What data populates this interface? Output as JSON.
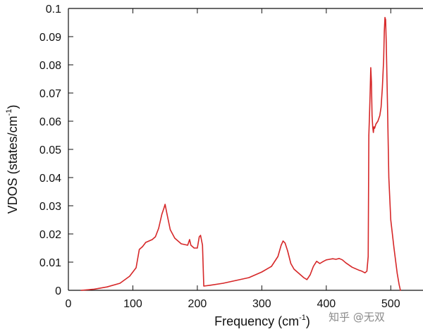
{
  "watermark": "知乎 @无双",
  "chart_data": {
    "type": "line",
    "title": "",
    "xlabel": "Frequency (cm",
    "xlabel_sup": "-1",
    "xlabel_end": ")",
    "ylabel": "VDOS (states/cm",
    "ylabel_sup": "-1",
    "ylabel_end": ")",
    "xlim": [
      0,
      550
    ],
    "ylim": [
      0,
      0.1
    ],
    "xticks": [
      0,
      100,
      200,
      300,
      400,
      500
    ],
    "xtick_labels": [
      "0",
      "100",
      "200",
      "300",
      "400",
      "500"
    ],
    "yticks": [
      0,
      0.01,
      0.02,
      0.03,
      0.04,
      0.05,
      0.06,
      0.07,
      0.08,
      0.09,
      0.1
    ],
    "ytick_labels": [
      "0",
      "0.01",
      "0.02",
      "0.03",
      "0.04",
      "0.05",
      "0.06",
      "0.07",
      "0.08",
      "0.09",
      "0.1"
    ],
    "grid": false,
    "series": [
      {
        "color": "#d62728",
        "x": [
          20,
          40,
          60,
          80,
          95,
          105,
          110,
          115,
          120,
          125,
          130,
          135,
          140,
          145,
          148,
          150,
          153,
          158,
          165,
          175,
          185,
          188,
          190,
          195,
          200,
          203,
          205,
          208,
          210,
          220,
          240,
          260,
          280,
          300,
          315,
          325,
          330,
          333,
          336,
          340,
          345,
          350,
          360,
          365,
          370,
          375,
          380,
          385,
          390,
          395,
          400,
          405,
          410,
          415,
          420,
          425,
          430,
          440,
          450,
          455,
          460,
          463,
          465,
          466,
          467,
          468,
          469,
          470,
          471,
          472,
          473,
          474,
          475,
          477,
          480,
          483,
          485,
          487,
          489,
          490,
          491,
          492,
          493,
          495,
          497,
          500,
          505,
          510,
          513,
          515
        ],
        "y": [
          0.0,
          0.0004,
          0.0012,
          0.0025,
          0.005,
          0.008,
          0.0145,
          0.0155,
          0.017,
          0.0175,
          0.018,
          0.019,
          0.022,
          0.027,
          0.029,
          0.0305,
          0.027,
          0.0215,
          0.0185,
          0.0165,
          0.016,
          0.018,
          0.016,
          0.015,
          0.015,
          0.019,
          0.0195,
          0.016,
          0.0015,
          0.0018,
          0.0025,
          0.0035,
          0.0045,
          0.0065,
          0.0085,
          0.012,
          0.016,
          0.0175,
          0.0168,
          0.014,
          0.0095,
          0.0075,
          0.0055,
          0.0045,
          0.0038,
          0.0055,
          0.0085,
          0.0103,
          0.0095,
          0.0102,
          0.0108,
          0.011,
          0.0112,
          0.011,
          0.0113,
          0.0108,
          0.0098,
          0.0082,
          0.0072,
          0.0068,
          0.0062,
          0.0068,
          0.012,
          0.055,
          0.062,
          0.07,
          0.079,
          0.074,
          0.062,
          0.058,
          0.056,
          0.058,
          0.0575,
          0.059,
          0.06,
          0.062,
          0.065,
          0.072,
          0.082,
          0.092,
          0.0968,
          0.096,
          0.088,
          0.065,
          0.04,
          0.025,
          0.015,
          0.006,
          0.002,
          0.0
        ]
      }
    ]
  },
  "style": {
    "axis_color": "#111111",
    "background": "#ffffff"
  }
}
